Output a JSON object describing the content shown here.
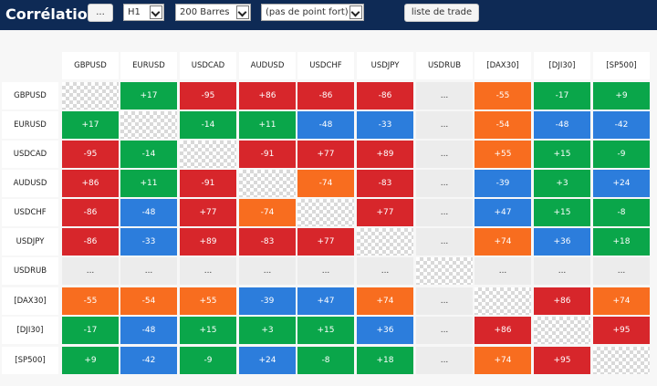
{
  "header": {
    "title": "Corrélation",
    "more_button": "...",
    "timeframe": "H1",
    "bars": "200 Barres",
    "strong_point": "(pas de point fort)",
    "trade_list_button": "liste de trade"
  },
  "colors": {
    "red": "#d7262b",
    "green": "#0aa64a",
    "blue": "#2c7ddc",
    "orange": "#f86d1f",
    "empty": "#ececec",
    "header_bg": "#0e2a55"
  },
  "symbols": [
    "GBPUSD",
    "EURUSD",
    "USDCAD",
    "AUDUSD",
    "USDCHF",
    "USDJPY",
    "USDRUB",
    "[DAX30]",
    "[DJI30]",
    "[SP500]"
  ],
  "matrix": [
    [
      {
        "t": "",
        "c": "diag"
      },
      {
        "t": "+17",
        "c": "green"
      },
      {
        "t": "-95",
        "c": "red"
      },
      {
        "t": "+86",
        "c": "red"
      },
      {
        "t": "-86",
        "c": "red"
      },
      {
        "t": "-86",
        "c": "red"
      },
      {
        "t": "...",
        "c": "empty"
      },
      {
        "t": "-55",
        "c": "orange"
      },
      {
        "t": "-17",
        "c": "green"
      },
      {
        "t": "+9",
        "c": "green"
      }
    ],
    [
      {
        "t": "+17",
        "c": "green"
      },
      {
        "t": "",
        "c": "diag"
      },
      {
        "t": "-14",
        "c": "green"
      },
      {
        "t": "+11",
        "c": "green"
      },
      {
        "t": "-48",
        "c": "blue"
      },
      {
        "t": "-33",
        "c": "blue"
      },
      {
        "t": "...",
        "c": "empty"
      },
      {
        "t": "-54",
        "c": "orange"
      },
      {
        "t": "-48",
        "c": "blue"
      },
      {
        "t": "-42",
        "c": "blue"
      }
    ],
    [
      {
        "t": "-95",
        "c": "red"
      },
      {
        "t": "-14",
        "c": "green"
      },
      {
        "t": "",
        "c": "diag"
      },
      {
        "t": "-91",
        "c": "red"
      },
      {
        "t": "+77",
        "c": "red"
      },
      {
        "t": "+89",
        "c": "red"
      },
      {
        "t": "...",
        "c": "empty"
      },
      {
        "t": "+55",
        "c": "orange"
      },
      {
        "t": "+15",
        "c": "green"
      },
      {
        "t": "-9",
        "c": "green"
      }
    ],
    [
      {
        "t": "+86",
        "c": "red"
      },
      {
        "t": "+11",
        "c": "green"
      },
      {
        "t": "-91",
        "c": "red"
      },
      {
        "t": "",
        "c": "diag"
      },
      {
        "t": "-74",
        "c": "orange"
      },
      {
        "t": "-83",
        "c": "red"
      },
      {
        "t": "...",
        "c": "empty"
      },
      {
        "t": "-39",
        "c": "blue"
      },
      {
        "t": "+3",
        "c": "green"
      },
      {
        "t": "+24",
        "c": "blue"
      }
    ],
    [
      {
        "t": "-86",
        "c": "red"
      },
      {
        "t": "-48",
        "c": "blue"
      },
      {
        "t": "+77",
        "c": "red"
      },
      {
        "t": "-74",
        "c": "orange"
      },
      {
        "t": "",
        "c": "diag"
      },
      {
        "t": "+77",
        "c": "red"
      },
      {
        "t": "...",
        "c": "empty"
      },
      {
        "t": "+47",
        "c": "blue"
      },
      {
        "t": "+15",
        "c": "green"
      },
      {
        "t": "-8",
        "c": "green"
      }
    ],
    [
      {
        "t": "-86",
        "c": "red"
      },
      {
        "t": "-33",
        "c": "blue"
      },
      {
        "t": "+89",
        "c": "red"
      },
      {
        "t": "-83",
        "c": "red"
      },
      {
        "t": "+77",
        "c": "red"
      },
      {
        "t": "",
        "c": "diag"
      },
      {
        "t": "...",
        "c": "empty"
      },
      {
        "t": "+74",
        "c": "orange"
      },
      {
        "t": "+36",
        "c": "blue"
      },
      {
        "t": "+18",
        "c": "green"
      }
    ],
    [
      {
        "t": "...",
        "c": "empty"
      },
      {
        "t": "...",
        "c": "empty"
      },
      {
        "t": "...",
        "c": "empty"
      },
      {
        "t": "...",
        "c": "empty"
      },
      {
        "t": "...",
        "c": "empty"
      },
      {
        "t": "...",
        "c": "empty"
      },
      {
        "t": "",
        "c": "diag"
      },
      {
        "t": "...",
        "c": "empty"
      },
      {
        "t": "...",
        "c": "empty"
      },
      {
        "t": "...",
        "c": "empty"
      }
    ],
    [
      {
        "t": "-55",
        "c": "orange"
      },
      {
        "t": "-54",
        "c": "orange"
      },
      {
        "t": "+55",
        "c": "orange"
      },
      {
        "t": "-39",
        "c": "blue"
      },
      {
        "t": "+47",
        "c": "blue"
      },
      {
        "t": "+74",
        "c": "orange"
      },
      {
        "t": "...",
        "c": "empty"
      },
      {
        "t": "",
        "c": "diag"
      },
      {
        "t": "+86",
        "c": "red"
      },
      {
        "t": "+74",
        "c": "orange"
      }
    ],
    [
      {
        "t": "-17",
        "c": "green"
      },
      {
        "t": "-48",
        "c": "blue"
      },
      {
        "t": "+15",
        "c": "green"
      },
      {
        "t": "+3",
        "c": "green"
      },
      {
        "t": "+15",
        "c": "green"
      },
      {
        "t": "+36",
        "c": "blue"
      },
      {
        "t": "...",
        "c": "empty"
      },
      {
        "t": "+86",
        "c": "red"
      },
      {
        "t": "",
        "c": "diag"
      },
      {
        "t": "+95",
        "c": "red"
      }
    ],
    [
      {
        "t": "+9",
        "c": "green"
      },
      {
        "t": "-42",
        "c": "blue"
      },
      {
        "t": "-9",
        "c": "green"
      },
      {
        "t": "+24",
        "c": "blue"
      },
      {
        "t": "-8",
        "c": "green"
      },
      {
        "t": "+18",
        "c": "green"
      },
      {
        "t": "...",
        "c": "empty"
      },
      {
        "t": "+74",
        "c": "orange"
      },
      {
        "t": "+95",
        "c": "red"
      },
      {
        "t": "",
        "c": "diag"
      }
    ]
  ]
}
